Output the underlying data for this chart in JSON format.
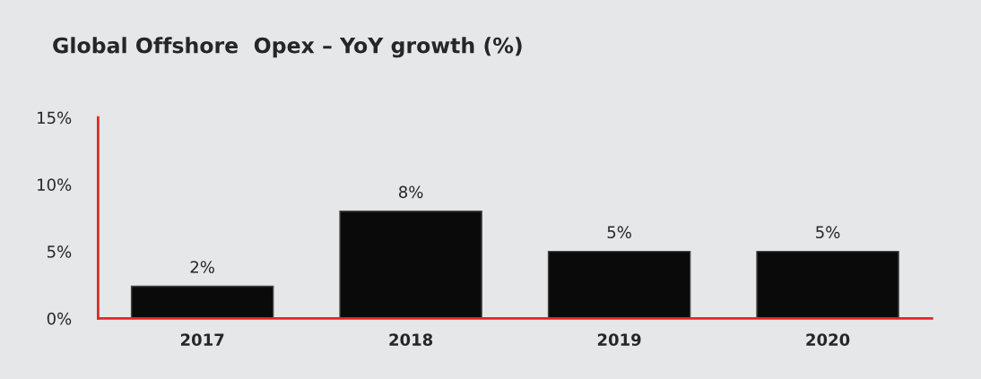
{
  "chart_data": {
    "type": "bar",
    "title": "Global Offshore  Opex – YoY growth (%)",
    "categories": [
      "2017",
      "2018",
      "2019",
      "2020"
    ],
    "values": [
      2.4,
      8,
      5,
      5
    ],
    "value_labels": [
      "2%",
      "8%",
      "5%",
      "5%"
    ],
    "color": "#0a0a0a",
    "ylim": [
      0,
      15
    ],
    "yticks": [
      {
        "value": 0,
        "label": "0%"
      },
      {
        "value": 5,
        "label": "5%"
      },
      {
        "value": 10,
        "label": "10%"
      },
      {
        "value": 15,
        "label": "15%"
      }
    ],
    "grid": false
  }
}
